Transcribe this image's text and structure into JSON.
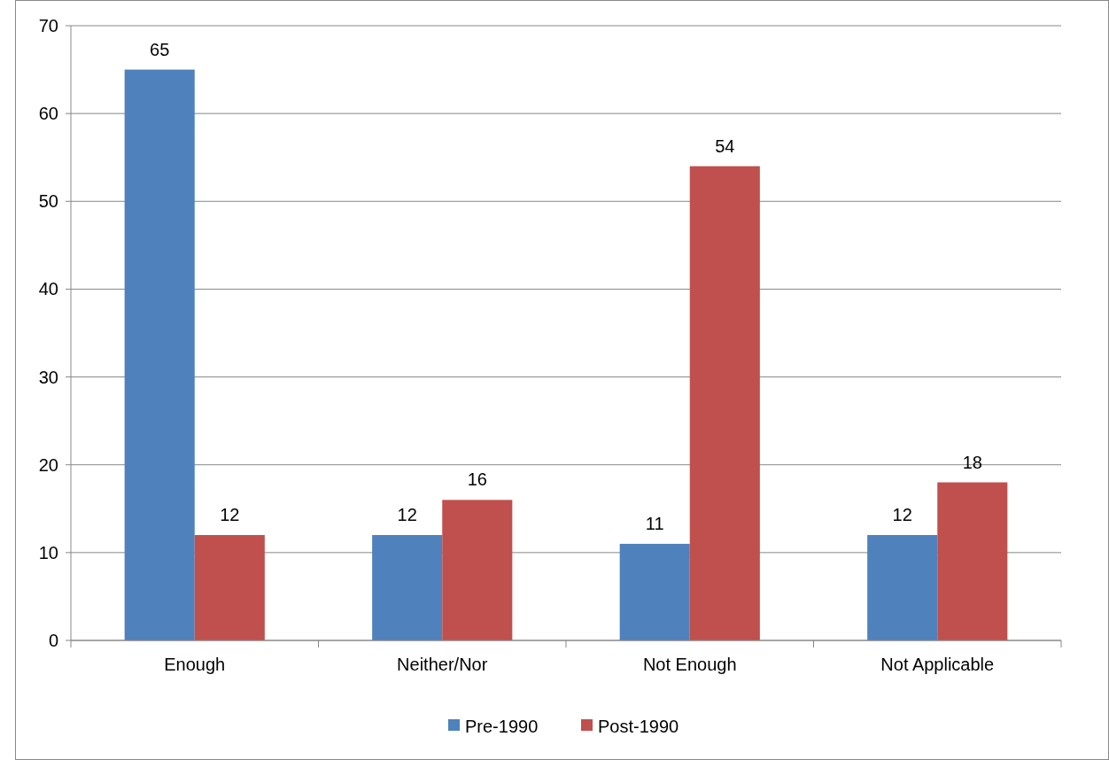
{
  "chart_data": {
    "type": "bar",
    "categories": [
      "Enough",
      "Neither/Nor",
      "Not Enough",
      "Not Applicable"
    ],
    "series": [
      {
        "name": "Pre-1990",
        "color": "#4f81bd",
        "values": [
          65,
          12,
          11,
          12
        ]
      },
      {
        "name": "Post-1990",
        "color": "#c0504d",
        "values": [
          12,
          16,
          54,
          18
        ]
      }
    ],
    "ylim": [
      0,
      70
    ],
    "yticks": [
      0,
      10,
      20,
      30,
      40,
      50,
      60,
      70
    ],
    "grid": "y",
    "legend": "bottom",
    "data_labels": true
  }
}
